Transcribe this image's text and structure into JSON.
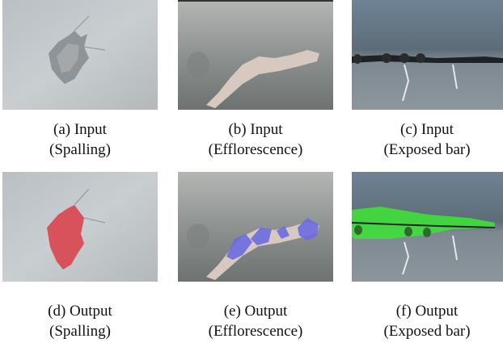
{
  "panels": [
    {
      "caption": "(a) Input",
      "subcaption": "(Spalling)"
    },
    {
      "caption": "(b) Input",
      "subcaption": "(Efflorescence)"
    },
    {
      "caption": "(c) Input",
      "subcaption": "(Exposed bar)"
    },
    {
      "caption": "(d) Output",
      "subcaption": "(Spalling)"
    },
    {
      "caption": "(e) Output",
      "subcaption": "(Efflorescence)"
    },
    {
      "caption": "(f) Output",
      "subcaption": "(Exposed bar)"
    }
  ]
}
